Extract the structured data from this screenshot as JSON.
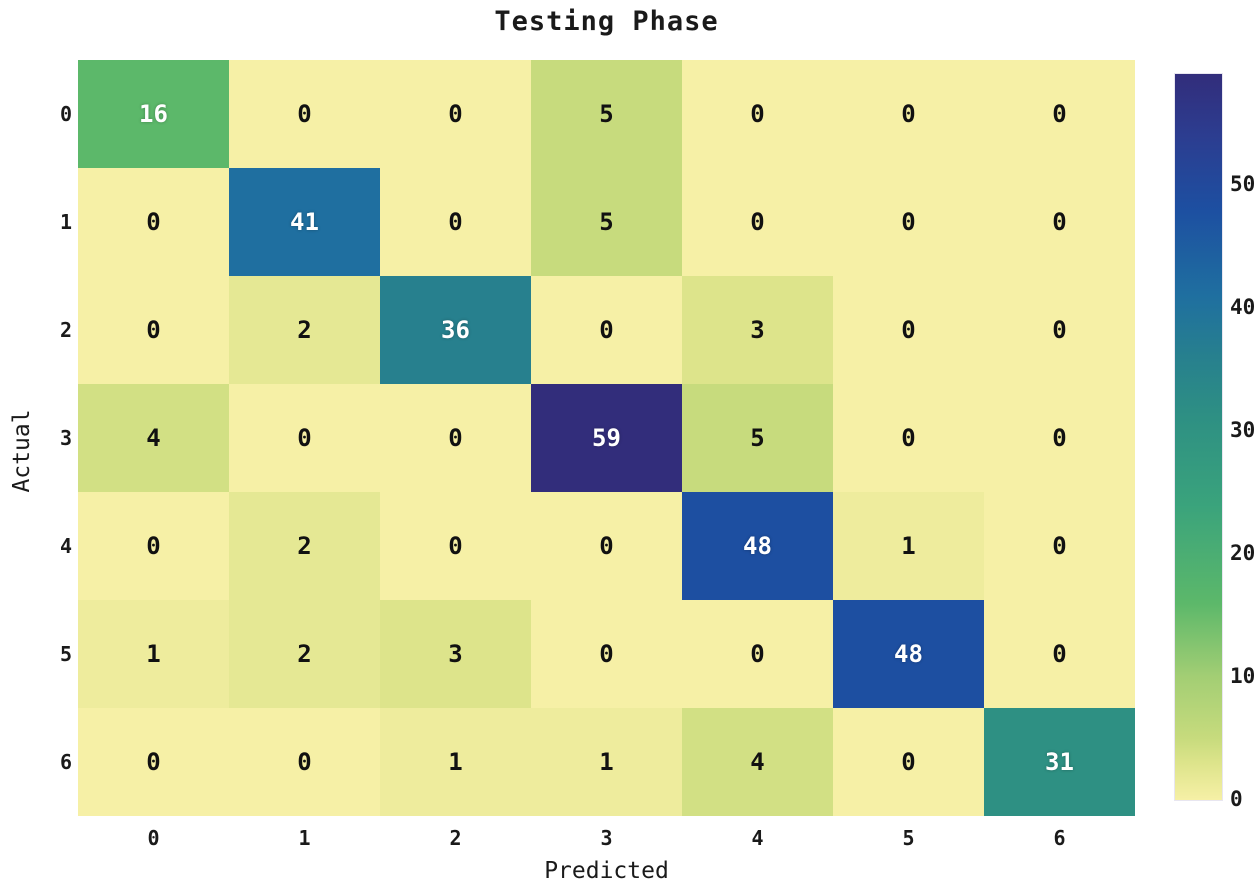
{
  "chart_data": {
    "type": "heatmap",
    "title": "Testing Phase",
    "xlabel": "Predicted",
    "ylabel": "Actual",
    "x_tick_labels": [
      "0",
      "1",
      "2",
      "3",
      "4",
      "5",
      "6"
    ],
    "y_tick_labels": [
      "0",
      "1",
      "2",
      "3",
      "4",
      "5",
      "6"
    ],
    "matrix": [
      [
        16,
        0,
        0,
        5,
        0,
        0,
        0
      ],
      [
        0,
        41,
        0,
        5,
        0,
        0,
        0
      ],
      [
        0,
        2,
        36,
        0,
        3,
        0,
        0
      ],
      [
        4,
        0,
        0,
        59,
        5,
        0,
        0
      ],
      [
        0,
        2,
        0,
        0,
        48,
        1,
        0
      ],
      [
        1,
        2,
        3,
        0,
        0,
        48,
        0
      ],
      [
        0,
        0,
        1,
        1,
        4,
        0,
        31
      ]
    ],
    "vmin": 0,
    "vmax": 59,
    "colorbar_ticks": [
      0,
      10,
      20,
      30,
      40,
      50
    ],
    "colormap_stops": [
      [
        0,
        "#f6f0a6"
      ],
      [
        3,
        "#dde48b"
      ],
      [
        5,
        "#c7db7d"
      ],
      [
        10,
        "#a3ce74"
      ],
      [
        16,
        "#5cb86a"
      ],
      [
        24,
        "#3aa37c"
      ],
      [
        31,
        "#2e9083"
      ],
      [
        36,
        "#27808e"
      ],
      [
        41,
        "#1f6fa0"
      ],
      [
        48,
        "#1d4fa1"
      ],
      [
        54,
        "#2c3d90"
      ],
      [
        59,
        "#322d7b"
      ]
    ],
    "annotation_light_text_threshold": 12,
    "grid": false,
    "legend_position": "right-colorbar"
  }
}
